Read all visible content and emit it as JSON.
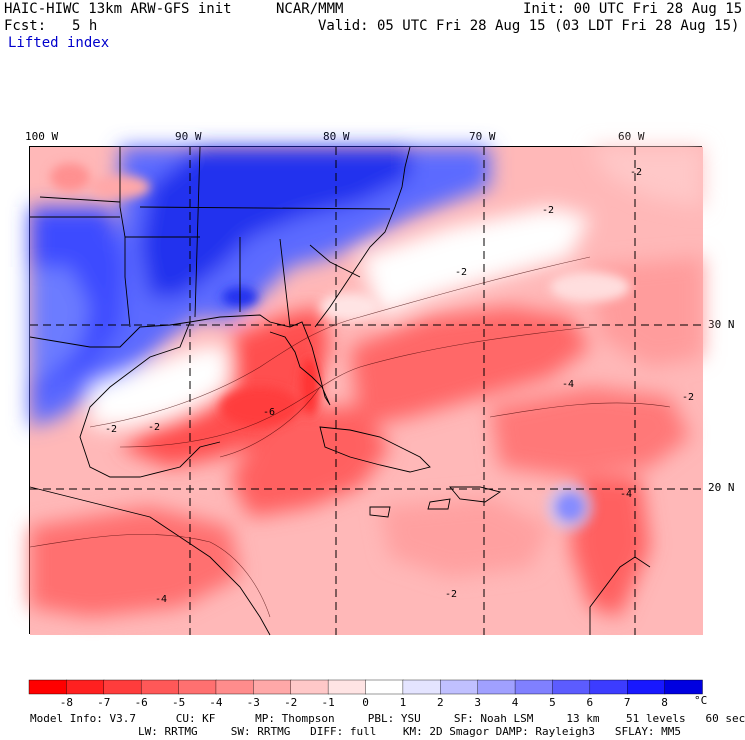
{
  "header": {
    "model": "HAIC-HIWC 13km ARW-GFS init",
    "org": "NCAR/MMM",
    "init": "Init: 00 UTC Fri 28 Aug 15",
    "fcst_label": "Fcst:",
    "fcst_value": "5 h",
    "valid": "Valid: 05 UTC Fri 28 Aug 15 (03 LDT Fri 28 Aug 15)",
    "field": "Lifted index"
  },
  "map": {
    "lon_labels": [
      "100 W",
      "90 W",
      "80 W",
      "70 W",
      "60 W"
    ],
    "lat_labels": [
      "30 N",
      "20 N"
    ],
    "contour_labels": [
      "-2",
      "-4",
      "-6"
    ]
  },
  "colorbar": {
    "ticks": [
      "-8",
      "-7",
      "-6",
      "-5",
      "-4",
      "-3",
      "-2",
      "-1",
      "0",
      "1",
      "2",
      "3",
      "4",
      "5",
      "6",
      "7",
      "8"
    ],
    "unit": "°C",
    "colors": [
      "#ff0000",
      "#ff2020",
      "#ff3c3c",
      "#ff5858",
      "#ff7070",
      "#ff8c8c",
      "#ffa8a8",
      "#ffc8c8",
      "#ffe4e4",
      "#ffffff",
      "#e4e4ff",
      "#c0c0ff",
      "#a0a0ff",
      "#8080ff",
      "#5c5cff",
      "#3c3cff",
      "#1818ff",
      "#0000e0"
    ]
  },
  "footer": {
    "line1": "Model Info: V3.7      CU: KF      MP: Thompson     PBL: YSU     SF: Noah LSM     13 km    51 levels   60 sec",
    "line2": "LW: RRTMG     SW: RRTMG   DIFF: full    KM: 2D Smagor DAMP: Rayleigh3   SFLAY: MM5"
  }
}
